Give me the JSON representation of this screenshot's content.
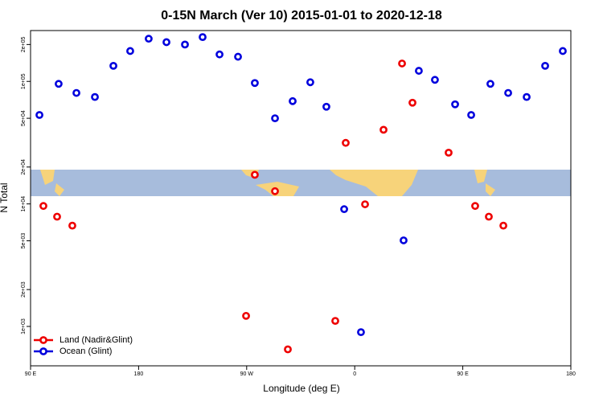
{
  "chart_data": {
    "type": "scatter",
    "title": "0-15N March (Ver 10)   2015-01-01 to 2020-12-18",
    "xlabel": "Longitude (deg E)",
    "ylabel": "N Total",
    "ylog": true,
    "legend": "bottom-left",
    "xlim": [
      90,
      540
    ],
    "xticks": [
      {
        "value": 90,
        "label": "90 E"
      },
      180,
      {
        "value": 270,
        "label": "90 W"
      },
      {
        "value": 360,
        "label": "0"
      },
      {
        "value": 450,
        "label": "90 E"
      },
      {
        "value": 540,
        "label": "180"
      }
    ],
    "ylim": [
      477,
      260000
    ],
    "yticks": [
      {
        "value": 1000,
        "label": "1e+03"
      },
      {
        "value": 2000,
        "label": "2e+03"
      },
      {
        "value": 5000,
        "label": "5e+03"
      },
      {
        "value": 10000,
        "label": "1e+04"
      },
      {
        "value": 20000,
        "label": "2e+04"
      },
      {
        "value": 50000,
        "label": "5e+04"
      },
      {
        "value": 100000,
        "label": "1e+05"
      },
      {
        "value": 200000,
        "label": "2e+05"
      }
    ],
    "series": [
      {
        "name": "Land (Nadir&Glint)",
        "color": "#ee0000",
        "x": [
          100.7,
          112.1,
          124.8,
          269.5,
          276.8,
          293.6,
          304.3,
          343.8,
          352.5,
          368.6,
          384.0,
          399.4,
          408.1,
          438.2,
          460.3,
          471.7,
          483.8
        ],
        "values": [
          9620,
          7870,
          6650,
          1220,
          17300,
          12700,
          650,
          1110,
          31500,
          9930,
          40300,
          140000,
          67000,
          26200,
          9620,
          7870,
          6650
        ]
      },
      {
        "name": "Ocean (Glint)",
        "color": "#0000dd",
        "x": [
          97.4,
          113.4,
          128.2,
          143.6,
          159.0,
          173.0,
          188.4,
          203.2,
          218.6,
          233.3,
          247.4,
          262.8,
          276.8,
          293.6,
          308.3,
          323.0,
          336.4,
          351.2,
          365.2,
          400.7,
          413.4,
          426.8,
          443.6,
          457.0,
          473.0,
          487.8,
          503.2,
          518.6,
          533.3
        ],
        "values": [
          53200,
          95500,
          80500,
          74600,
          134000,
          177000,
          223000,
          209000,
          200000,
          230000,
          166000,
          159000,
          97000,
          50000,
          69000,
          98400,
          62100,
          9060,
          898,
          5040,
          122000,
          103000,
          65000,
          53200,
          95500,
          80500,
          74600,
          134000,
          177000
        ]
      }
    ]
  }
}
